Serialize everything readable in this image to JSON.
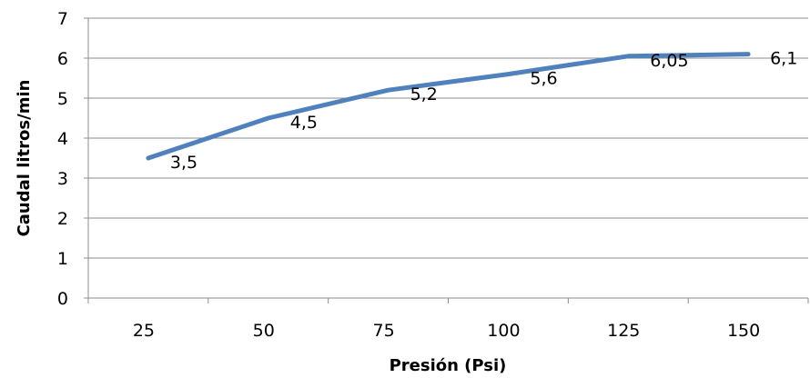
{
  "chart_data": {
    "type": "line",
    "title": "",
    "xlabel": "Presión (Psi)",
    "ylabel": "Caudal litros/min",
    "categories": [
      "25",
      "50",
      "75",
      "100",
      "125",
      "150"
    ],
    "series": [
      {
        "values": [
          3.5,
          4.5,
          5.2,
          5.6,
          6.05,
          6.1
        ],
        "labels": [
          "3,5",
          "4,5",
          "5,2",
          "5,6",
          "6,05",
          "6,1"
        ],
        "color": "#4f81bd"
      }
    ],
    "ylim": [
      0,
      7
    ],
    "yticks": [
      "0",
      "1",
      "2",
      "3",
      "4",
      "5",
      "6",
      "7"
    ],
    "grid": true,
    "legend": "none"
  }
}
